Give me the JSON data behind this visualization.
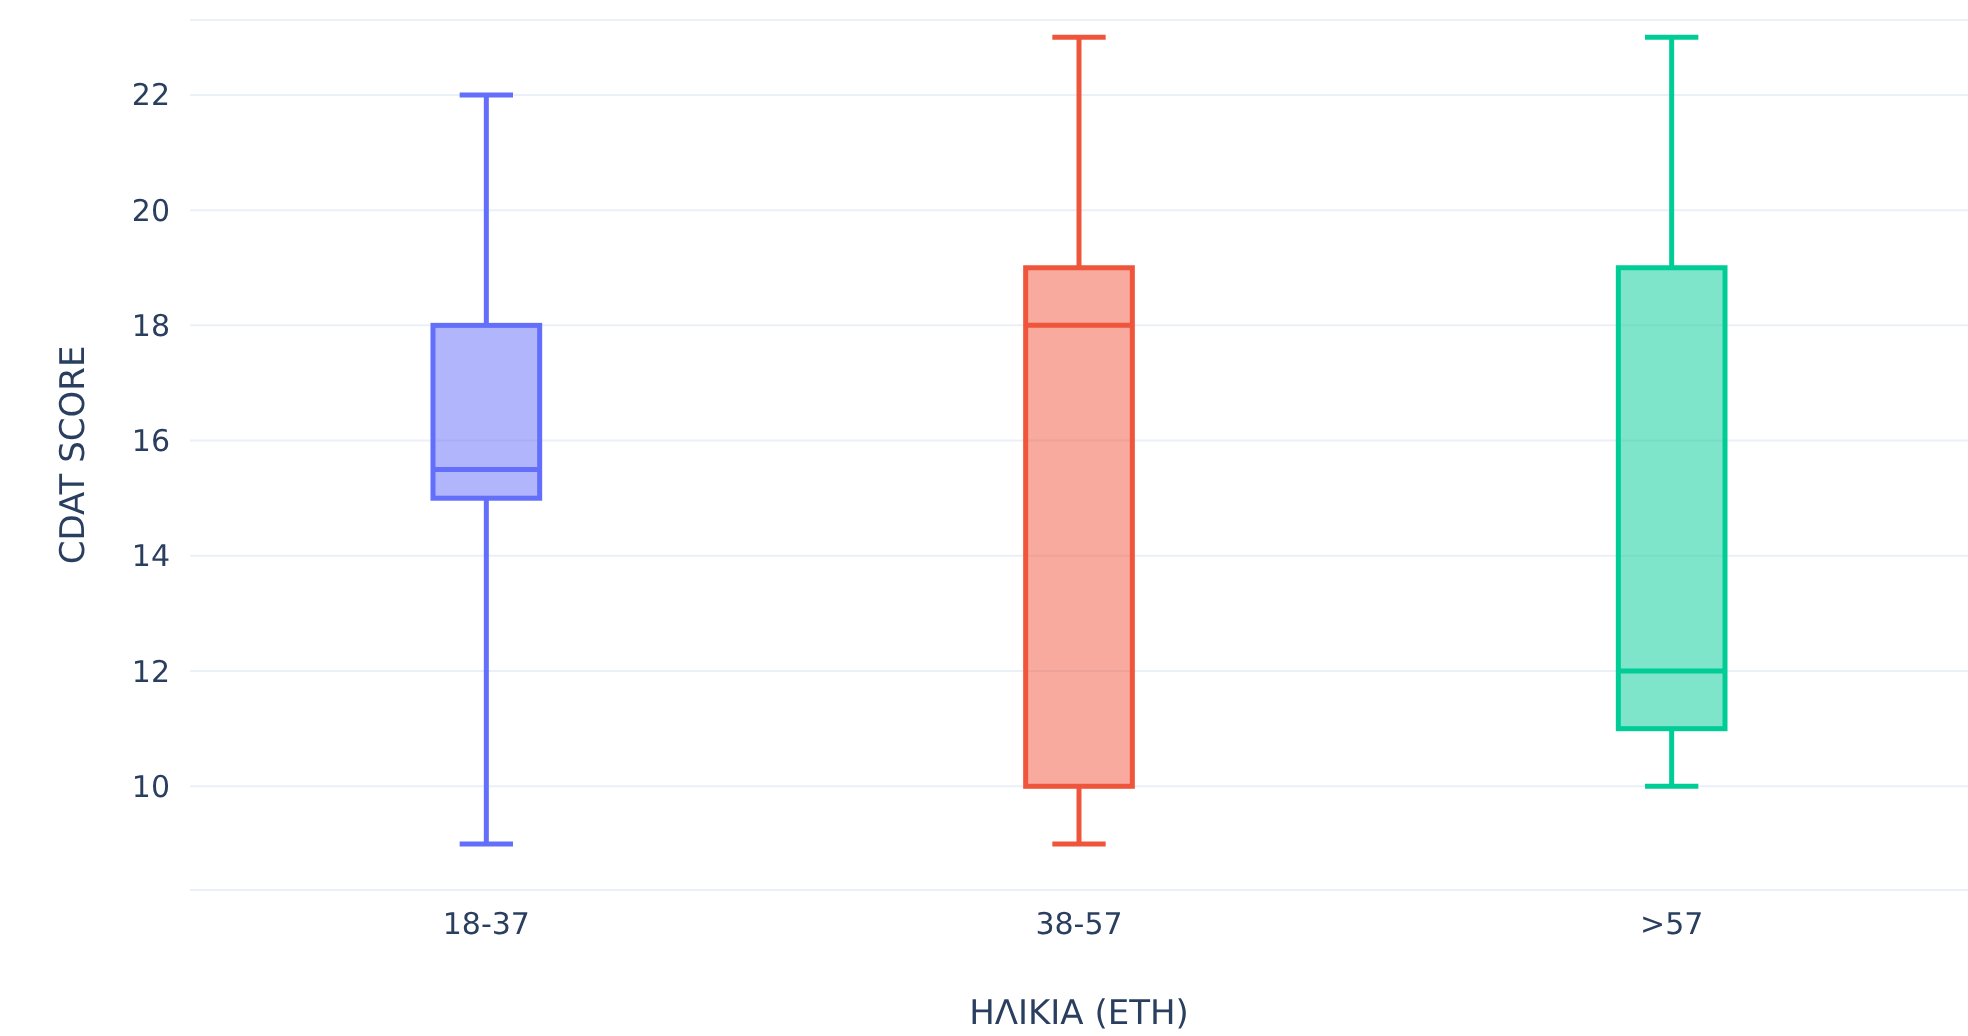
{
  "chart_data": {
    "type": "box",
    "xlabel": "ΗΛΙΚΙΑ (ΕΤΗ)",
    "ylabel": "CDAT SCORE",
    "categories": [
      "18-37",
      "38-57",
      ">57"
    ],
    "colors": [
      "#636efa",
      "#ef553b",
      "#00cc96"
    ],
    "boxes": [
      {
        "low": 9,
        "q1": 15,
        "median": 15.5,
        "q3": 18,
        "high": 22
      },
      {
        "low": 9,
        "q1": 10,
        "median": 18,
        "q3": 19,
        "high": 23
      },
      {
        "low": 10,
        "q1": 11,
        "median": 12,
        "q3": 19,
        "high": 23
      }
    ],
    "ylim": [
      8.2,
      23.3
    ],
    "yticks": [
      10,
      12,
      14,
      16,
      18,
      20,
      22
    ],
    "grid": "y"
  }
}
